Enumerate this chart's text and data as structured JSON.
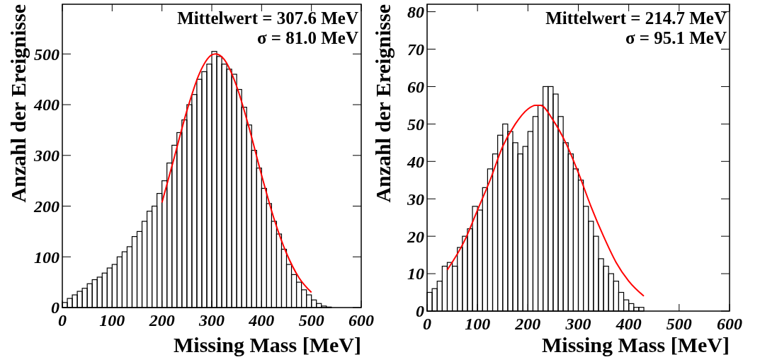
{
  "chart_data": [
    {
      "type": "histogram",
      "xlabel": "Missing Mass [MeV]",
      "ylabel": "Anzahl der Ereignisse",
      "annotations": [
        "Mittelwert = 307.6 MeV",
        "σ = 81.0 MeV"
      ],
      "bins": [
        0,
        10,
        20,
        30,
        40,
        50,
        60,
        70,
        80,
        90,
        100,
        110,
        120,
        130,
        140,
        150,
        160,
        170,
        180,
        190,
        200,
        210,
        220,
        230,
        240,
        250,
        260,
        270,
        280,
        290,
        300,
        310,
        320,
        330,
        340,
        350,
        360,
        370,
        380,
        390,
        400,
        410,
        420,
        430,
        440,
        450,
        460,
        470,
        480,
        490,
        500,
        510,
        520,
        530,
        540,
        550,
        560,
        570,
        580,
        590,
        600
      ],
      "series": [
        {
          "color": "#000000",
          "values": [
            10,
            18,
            25,
            32,
            38,
            47,
            55,
            60,
            68,
            78,
            85,
            100,
            110,
            120,
            140,
            150,
            170,
            190,
            200,
            225,
            250,
            285,
            320,
            345,
            370,
            400,
            420,
            450,
            465,
            480,
            505,
            495,
            480,
            470,
            460,
            430,
            395,
            360,
            310,
            275,
            235,
            205,
            170,
            145,
            115,
            85,
            65,
            50,
            35,
            25,
            15,
            8,
            3,
            1,
            0,
            0,
            0,
            0,
            0,
            0
          ]
        },
        {
          "type": "line",
          "color": "#ff0000",
          "x": [
            200,
            225,
            250,
            275,
            300,
            307.6,
            325,
            350,
            375,
            400,
            425,
            450,
            475,
            500
          ],
          "values": [
            207,
            297,
            388,
            461,
            498,
            500,
            489,
            436,
            354,
            261,
            175,
            107,
            59,
            30
          ]
        }
      ],
      "xlim": [
        0,
        600
      ],
      "ylim": [
        0,
        598
      ],
      "xticks": [
        0,
        100,
        200,
        300,
        400,
        500,
        600
      ],
      "yticks": [
        0,
        100,
        200,
        300,
        400,
        500
      ]
    },
    {
      "type": "histogram",
      "xlabel": "Missing Mass [MeV]",
      "ylabel": "Anzahl der Ereignisse",
      "annotations": [
        "Mittelwert = 214.7 MeV",
        "σ = 95.1 MeV"
      ],
      "bins": [
        0,
        10,
        20,
        30,
        40,
        50,
        60,
        70,
        80,
        90,
        100,
        110,
        120,
        130,
        140,
        150,
        160,
        170,
        180,
        190,
        200,
        210,
        220,
        230,
        240,
        250,
        260,
        270,
        280,
        290,
        300,
        310,
        320,
        330,
        340,
        350,
        360,
        370,
        380,
        390,
        400,
        410,
        420,
        430,
        440,
        450,
        460,
        470,
        480,
        490,
        500,
        510,
        520,
        530,
        540,
        550,
        560,
        570,
        580,
        590,
        600
      ],
      "series": [
        {
          "color": "#000000",
          "values": [
            5,
            6,
            8,
            12,
            13,
            12,
            17,
            20,
            22,
            28,
            27,
            33,
            38,
            42,
            47,
            50,
            48,
            45,
            42,
            44,
            48,
            52,
            55,
            60,
            60,
            58,
            52,
            45,
            42,
            38,
            35,
            28,
            24,
            20,
            14,
            12,
            10,
            8,
            5,
            3,
            2,
            1,
            1,
            0,
            0,
            0,
            0,
            0,
            0,
            0,
            0,
            0,
            0,
            0,
            0,
            0,
            0,
            0,
            0,
            0
          ]
        },
        {
          "type": "line",
          "color": "#ff0000",
          "x": [
            40,
            75,
            100,
            125,
            150,
            175,
            200,
            214.7,
            225,
            250,
            275,
            300,
            325,
            350,
            375,
            400,
            430
          ],
          "values": [
            11,
            19,
            27,
            35,
            44,
            50,
            54,
            55,
            55,
            51,
            45,
            37,
            28,
            20,
            13,
            8,
            4
          ]
        }
      ],
      "xlim": [
        0,
        600
      ],
      "ylim": [
        0,
        82
      ],
      "xticks": [
        0,
        100,
        200,
        300,
        400,
        500,
        600
      ],
      "yticks": [
        0,
        10,
        20,
        30,
        40,
        50,
        60,
        70,
        80
      ]
    }
  ]
}
